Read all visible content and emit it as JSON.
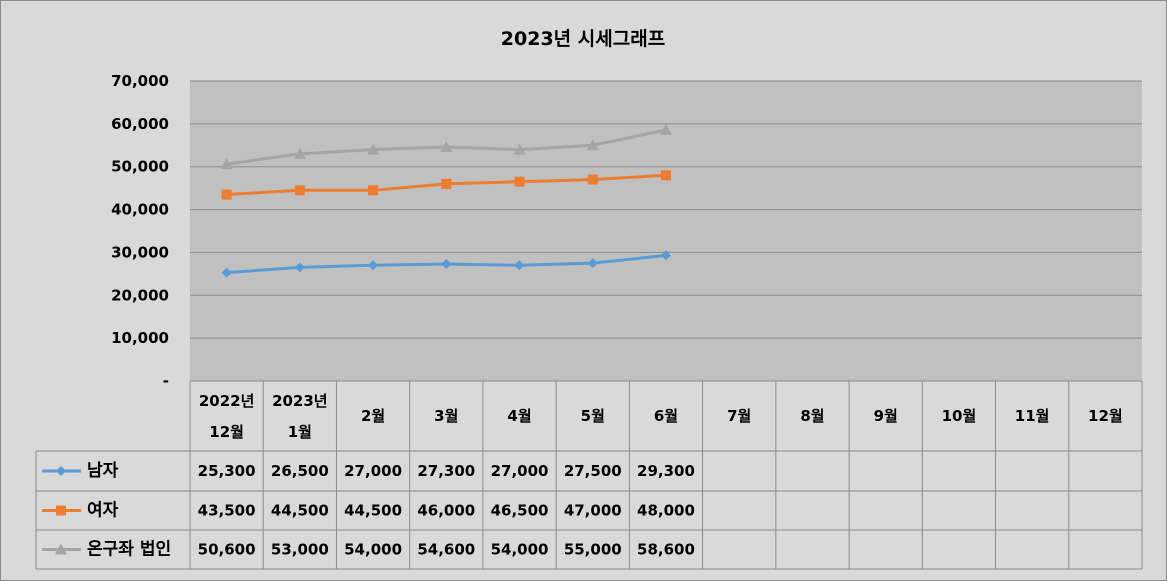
{
  "chart_data": {
    "type": "line",
    "title": "2023년 시세그래프",
    "ylim": [
      0,
      70000
    ],
    "y_ticks": [
      0,
      10000,
      20000,
      30000,
      40000,
      50000,
      60000,
      70000
    ],
    "y_tick_labels": [
      "-",
      "10,000",
      "20,000",
      "30,000",
      "40,000",
      "50,000",
      "60,000",
      "70,000"
    ],
    "grid": true,
    "legend": "data-table-left",
    "categories": [
      [
        "2022년",
        "12월"
      ],
      [
        "2023년",
        "1월"
      ],
      [
        "2월"
      ],
      [
        "3월"
      ],
      [
        "4월"
      ],
      [
        "5월"
      ],
      [
        "6월"
      ],
      [
        "7월"
      ],
      [
        "8월"
      ],
      [
        "9월"
      ],
      [
        "10월"
      ],
      [
        "11월"
      ],
      [
        "12월"
      ]
    ],
    "series": [
      {
        "name": "남자",
        "color": "#5b9bd5",
        "marker": "diamond",
        "values": [
          25300,
          26500,
          27000,
          27300,
          27000,
          27500,
          29300,
          null,
          null,
          null,
          null,
          null,
          null
        ],
        "labels": [
          "25,300",
          "26,500",
          "27,000",
          "27,300",
          "27,000",
          "27,500",
          "29,300",
          "",
          "",
          "",
          "",
          "",
          ""
        ]
      },
      {
        "name": "여자",
        "color": "#ed7d31",
        "marker": "square",
        "values": [
          43500,
          44500,
          44500,
          46000,
          46500,
          47000,
          48000,
          null,
          null,
          null,
          null,
          null,
          null
        ],
        "labels": [
          "43,500",
          "44,500",
          "44,500",
          "46,000",
          "46,500",
          "47,000",
          "48,000",
          "",
          "",
          "",
          "",
          "",
          ""
        ]
      },
      {
        "name": "온구좌 법인",
        "color": "#a5a5a5",
        "marker": "triangle",
        "values": [
          50600,
          53000,
          54000,
          54600,
          54000,
          55000,
          58600,
          null,
          null,
          null,
          null,
          null,
          null
        ],
        "labels": [
          "50,600",
          "53,000",
          "54,000",
          "54,600",
          "54,000",
          "55,000",
          "58,600",
          "",
          "",
          "",
          "",
          "",
          ""
        ]
      }
    ],
    "colors": {
      "plot_background": "#c0c0c0",
      "chart_background": "#d9d9d9",
      "gridline": "#8c8c8c"
    }
  }
}
